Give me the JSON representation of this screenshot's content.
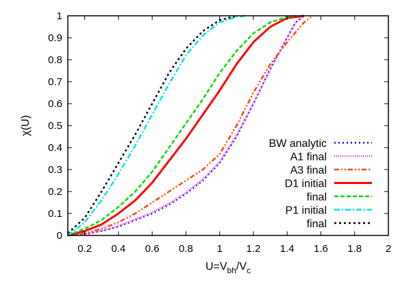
{
  "chart_data": {
    "type": "line",
    "title": "",
    "xlabel": "U=V_bh/V_c",
    "xlabel_parts": {
      "main": "U=V",
      "sub1": "bh",
      "mid": "/V",
      "sub2": "c"
    },
    "ylabel": "χ(U)",
    "xlim": [
      0.1,
      2
    ],
    "ylim": [
      0,
      1
    ],
    "xticks": [
      "0.2",
      "0.4",
      "0.6",
      "0.8",
      "1",
      "1.2",
      "1.4",
      "1.6",
      "1.8",
      "2"
    ],
    "xtick_values": [
      0.2,
      0.4,
      0.6,
      0.8,
      1,
      1.2,
      1.4,
      1.6,
      1.8,
      2
    ],
    "yticks": [
      "0",
      "0.1",
      "0.2",
      "0.3",
      "0.4",
      "0.5",
      "0.6",
      "0.7",
      "0.8",
      "0.9",
      "1"
    ],
    "ytick_values": [
      0,
      0.1,
      0.2,
      0.3,
      0.4,
      0.5,
      0.6,
      0.7,
      0.8,
      0.9,
      1
    ],
    "grid": false,
    "legend_position": "bottom-right",
    "series": [
      {
        "name": "BW analytic",
        "color": "#0000ff",
        "dash": "2,4",
        "x": [
          0.1,
          0.2,
          0.3,
          0.4,
          0.5,
          0.6,
          0.7,
          0.8,
          0.9,
          1.0,
          1.1,
          1.2,
          1.3,
          1.4,
          1.45,
          1.5
        ],
        "y": [
          0,
          0.005,
          0.02,
          0.04,
          0.07,
          0.1,
          0.14,
          0.19,
          0.25,
          0.33,
          0.45,
          0.6,
          0.76,
          0.9,
          0.97,
          1
        ]
      },
      {
        "name": "A1 final",
        "color": "#ff00ff",
        "dash": "1,2",
        "x": [
          0.1,
          0.2,
          0.3,
          0.4,
          0.5,
          0.6,
          0.7,
          0.8,
          0.9,
          1.0,
          1.1,
          1.2,
          1.3,
          1.4,
          1.45,
          1.5
        ],
        "y": [
          0,
          0.006,
          0.022,
          0.043,
          0.073,
          0.105,
          0.145,
          0.195,
          0.255,
          0.335,
          0.455,
          0.6,
          0.755,
          0.9,
          0.97,
          1
        ]
      },
      {
        "name": "A3 final",
        "color": "#ff4500",
        "dash": "7,3,2,3,2,3",
        "x": [
          0.1,
          0.2,
          0.3,
          0.4,
          0.5,
          0.6,
          0.7,
          0.8,
          0.9,
          1.0,
          1.1,
          1.2,
          1.3,
          1.4,
          1.5,
          1.55
        ],
        "y": [
          0,
          0.01,
          0.03,
          0.06,
          0.1,
          0.15,
          0.2,
          0.25,
          0.3,
          0.37,
          0.5,
          0.65,
          0.78,
          0.88,
          0.97,
          1
        ]
      },
      {
        "name": "D1 initial",
        "color": "#ff0000",
        "dash": "",
        "x": [
          0.1,
          0.2,
          0.3,
          0.4,
          0.5,
          0.6,
          0.7,
          0.8,
          0.9,
          1.0,
          1.1,
          1.2,
          1.3,
          1.4,
          1.5
        ],
        "y": [
          0,
          0.02,
          0.05,
          0.1,
          0.16,
          0.24,
          0.34,
          0.44,
          0.55,
          0.66,
          0.78,
          0.88,
          0.95,
          0.99,
          1
        ]
      },
      {
        "name": "final",
        "color": "#00dd00",
        "dash": "6,3",
        "x": [
          0.1,
          0.2,
          0.3,
          0.4,
          0.5,
          0.6,
          0.7,
          0.8,
          0.9,
          1.0,
          1.1,
          1.2,
          1.3,
          1.4,
          1.45
        ],
        "y": [
          0,
          0.03,
          0.07,
          0.13,
          0.2,
          0.29,
          0.4,
          0.51,
          0.62,
          0.74,
          0.84,
          0.92,
          0.97,
          0.995,
          1
        ]
      },
      {
        "name": "P1 initial",
        "color": "#00e5ee",
        "dash": "8,3,2,3",
        "x": [
          0.1,
          0.2,
          0.3,
          0.4,
          0.5,
          0.6,
          0.7,
          0.8,
          0.9,
          1.0,
          1.1,
          1.15
        ],
        "y": [
          0,
          0.06,
          0.16,
          0.28,
          0.41,
          0.55,
          0.69,
          0.82,
          0.91,
          0.97,
          0.995,
          1
        ]
      },
      {
        "name": "final",
        "color": "#000000",
        "dash": "3,4",
        "x": [
          0.1,
          0.2,
          0.3,
          0.4,
          0.5,
          0.6,
          0.7,
          0.8,
          0.9,
          1.0,
          1.1
        ],
        "y": [
          0.01,
          0.08,
          0.2,
          0.33,
          0.46,
          0.6,
          0.74,
          0.85,
          0.93,
          0.98,
          1
        ]
      }
    ]
  }
}
